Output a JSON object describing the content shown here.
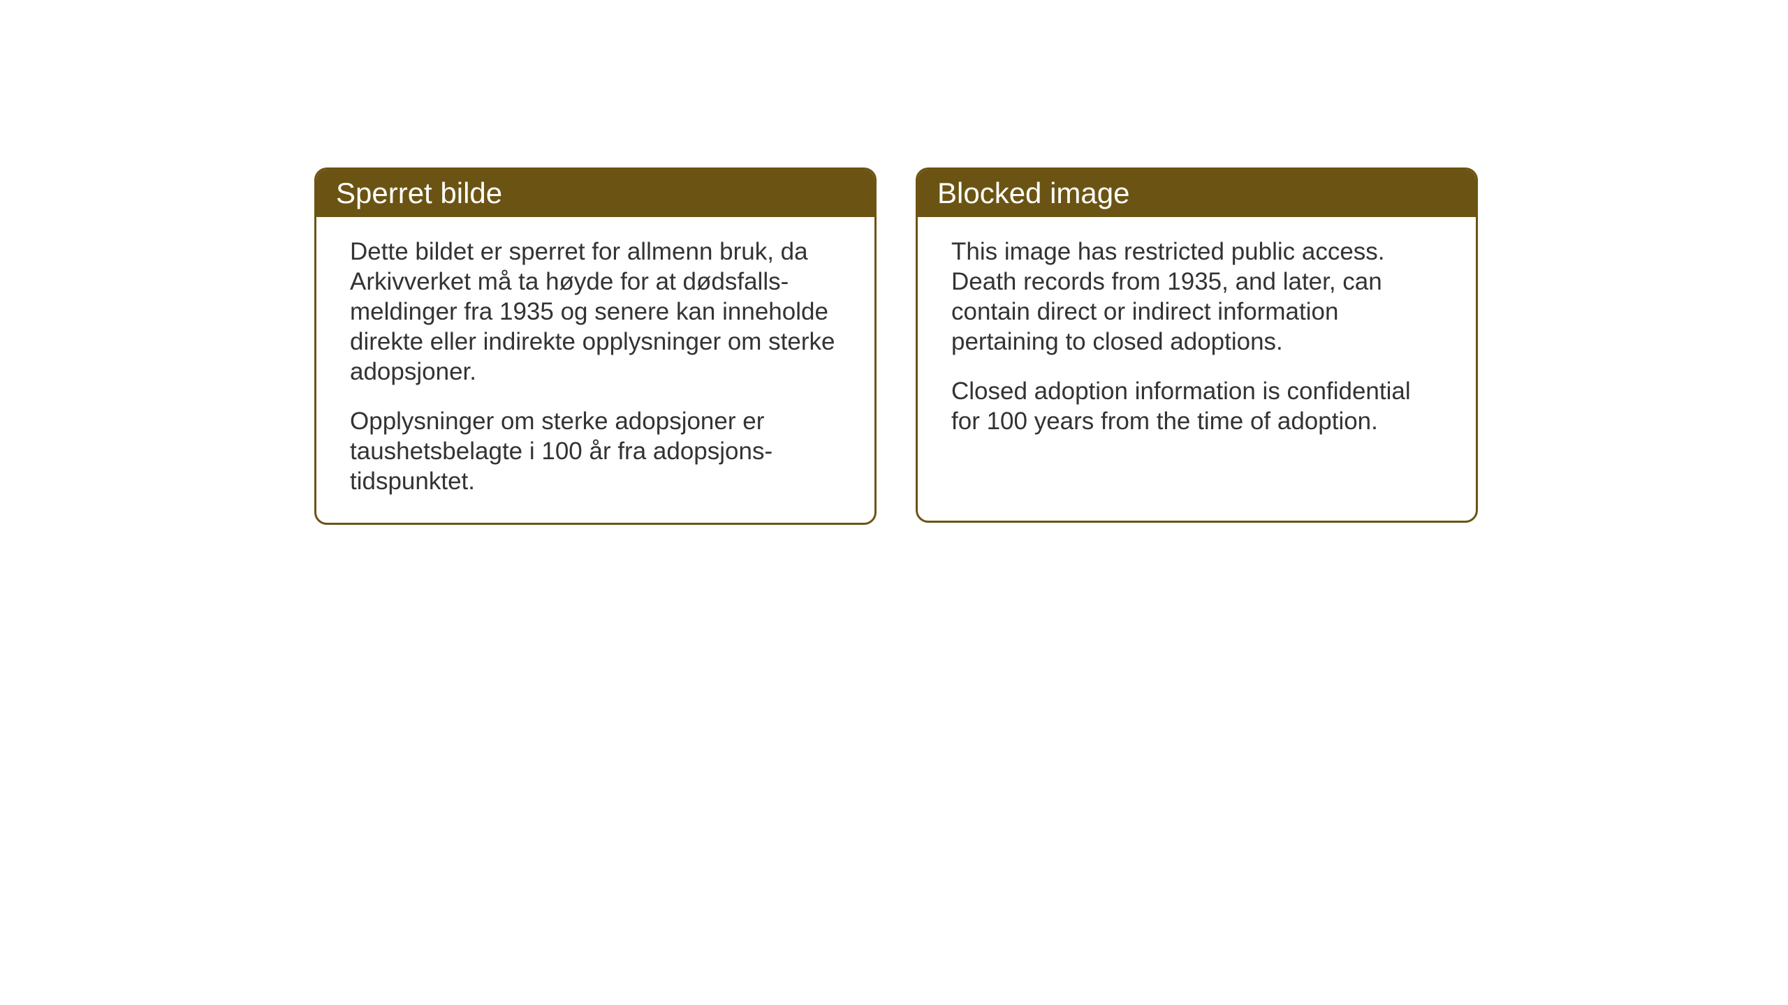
{
  "cards": {
    "norwegian": {
      "title": "Sperret bilde",
      "paragraph1": "Dette bildet er sperret for allmenn bruk, da Arkivverket må ta høyde for at dødsfalls-meldinger fra 1935 og senere kan inneholde direkte eller indirekte opplysninger om sterke adopsjoner.",
      "paragraph2": "Opplysninger om sterke adopsjoner er taushetsbelagte i 100 år fra adopsjons-tidspunktet."
    },
    "english": {
      "title": "Blocked image",
      "paragraph1": "This image has restricted public access. Death records from 1935, and later, can contain direct or indirect information pertaining to closed adoptions.",
      "paragraph2": "Closed adoption information is confidential for 100 years from the time of adoption."
    }
  },
  "styling": {
    "header_bg_color": "#6b5413",
    "header_text_color": "#ffffff",
    "border_color": "#6b5413",
    "body_bg_color": "#ffffff",
    "body_text_color": "#333333",
    "title_fontsize": 42,
    "body_fontsize": 35,
    "border_radius": 18,
    "border_width": 3
  }
}
